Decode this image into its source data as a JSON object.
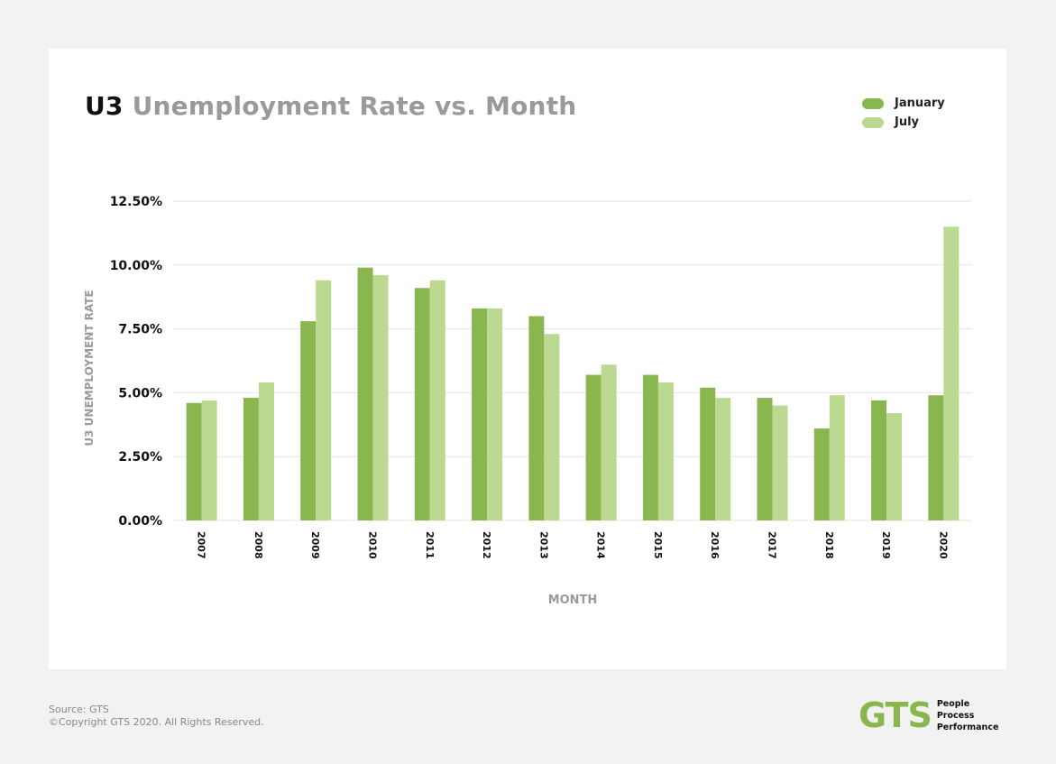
{
  "chart_data": {
    "type": "bar",
    "title_strong": "U3",
    "title_light": "Unemployment Rate vs. Month",
    "xlabel": "MONTH",
    "ylabel": "U3 UNEMPLOYMENT RATE",
    "categories": [
      "2007",
      "2008",
      "2009",
      "2010",
      "2011",
      "2012",
      "2013",
      "2014",
      "2015",
      "2016",
      "2017",
      "2018",
      "2019",
      "2020"
    ],
    "series": [
      {
        "name": "January",
        "color": "#8ab64f",
        "values": [
          4.6,
          4.8,
          7.8,
          9.9,
          9.1,
          8.3,
          8.0,
          5.7,
          5.7,
          5.2,
          4.8,
          3.6,
          4.7,
          4.9
        ]
      },
      {
        "name": "July",
        "color": "#bcd991",
        "values": [
          4.7,
          5.4,
          9.4,
          9.6,
          9.4,
          8.3,
          7.3,
          6.1,
          5.4,
          4.8,
          4.5,
          4.9,
          4.2,
          11.5
        ]
      }
    ],
    "ylim": [
      0,
      12.5
    ],
    "yticks": [
      "0.00%",
      "2.50%",
      "5.00%",
      "7.50%",
      "10.00%",
      "12.50%"
    ],
    "ytick_values": [
      0,
      2.5,
      5,
      7.5,
      10,
      12.5
    ],
    "grid": true,
    "legend_position": "top-right"
  },
  "footer": {
    "source": "Source: GTS",
    "copyright": "©Copyright GTS 2020. All Rights Reserved."
  },
  "logo": {
    "mark": "GTS",
    "tagline": [
      "People",
      "Process",
      "Performance"
    ]
  },
  "colors": {
    "accent": "#8ab64f",
    "accent_light": "#bcd991"
  }
}
